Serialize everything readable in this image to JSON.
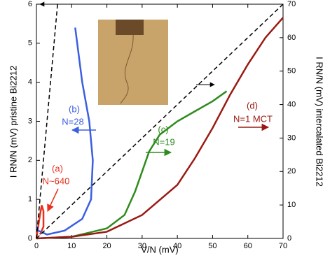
{
  "chart_data": {
    "type": "line",
    "xlabel": "V/N (mV)",
    "ylabel": "I RN/N (mV) pristine Bi2212",
    "y2label": "I RN/N (mV) intercalated Bi2212",
    "xlim": [
      0,
      70
    ],
    "xticks": [
      0,
      10,
      20,
      30,
      40,
      50,
      60,
      70
    ],
    "ylim": [
      0,
      6
    ],
    "yticks": [
      0,
      1,
      2,
      3,
      4,
      5,
      6
    ],
    "y2lim": [
      0,
      70
    ],
    "y2ticks": [
      0,
      10,
      20,
      30,
      40,
      50,
      60,
      70
    ],
    "grid": false,
    "series": [
      {
        "label": "(a)",
        "name": "N~640",
        "color": "#e8301c",
        "axis": "y",
        "x": [
          0,
          0.5,
          1,
          1.5,
          2,
          2,
          1
        ],
        "values": [
          0,
          0.3,
          0.6,
          0.85,
          0.7,
          0.3,
          0.1
        ]
      },
      {
        "label": "(b)",
        "name": "N=28",
        "color": "#3a5fe0",
        "axis": "y",
        "x": [
          0,
          0.5,
          3,
          8,
          13,
          15.5,
          16,
          15,
          13,
          11
        ],
        "values": [
          0.3,
          0.2,
          0.1,
          0.2,
          0.5,
          1,
          2,
          3,
          4,
          5.4
        ]
      },
      {
        "label": "(c)",
        "name": "N=19",
        "color": "#2e8b1e",
        "axis": "y2",
        "x": [
          0,
          10,
          20,
          25,
          28,
          30,
          32,
          35,
          40,
          45,
          50,
          54
        ],
        "values": [
          0,
          0.5,
          3,
          7,
          14,
          20,
          26,
          31,
          35,
          38,
          41,
          44
        ]
      },
      {
        "label": "(d)",
        "name": "N=1 MCT",
        "color": "#991a12",
        "axis": "y2",
        "x": [
          0,
          10,
          20,
          30,
          40,
          45,
          50,
          55,
          60,
          65,
          70
        ],
        "values": [
          0,
          0.5,
          2,
          7,
          16,
          24,
          33,
          43,
          52,
          60,
          66
        ]
      },
      {
        "color": "#000000",
        "axis": "y",
        "dashed": true,
        "x": [
          0,
          6
        ],
        "values": [
          0,
          6
        ]
      },
      {
        "color": "#000000",
        "axis": "y2",
        "dashed": true,
        "x": [
          0,
          70
        ],
        "values": [
          0,
          70
        ]
      }
    ]
  }
}
